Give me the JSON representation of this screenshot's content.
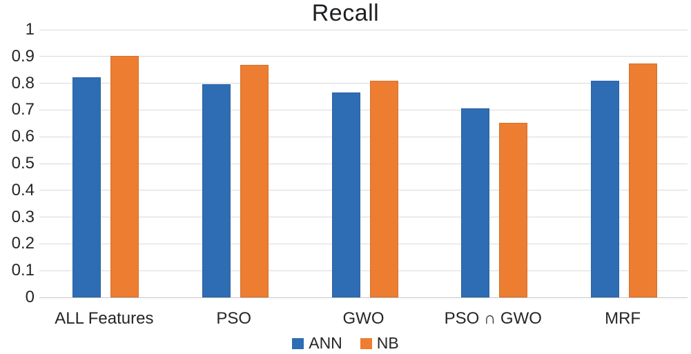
{
  "chart_data": {
    "type": "bar",
    "title": "Recall",
    "categories": [
      "ALL Features",
      "PSO",
      "GWO",
      "PSO ∩ GWO",
      "MRF"
    ],
    "series": [
      {
        "name": "ANN",
        "color": "#2E6DB4",
        "values": [
          0.822,
          0.797,
          0.765,
          0.706,
          0.808
        ]
      },
      {
        "name": "NB",
        "color": "#ED7D31",
        "values": [
          0.902,
          0.868,
          0.81,
          0.651,
          0.874
        ]
      }
    ],
    "xlabel": "",
    "ylabel": "",
    "ylim": [
      0,
      1
    ],
    "ytick_step": 0.1,
    "ytick_labels": [
      "0",
      "0.1",
      "0.2",
      "0.3",
      "0.4",
      "0.5",
      "0.6",
      "0.7",
      "0.8",
      "0.9",
      "1"
    ],
    "grid": true,
    "gridline_color": "#d9d9d9",
    "legend_position": "bottom-center"
  }
}
